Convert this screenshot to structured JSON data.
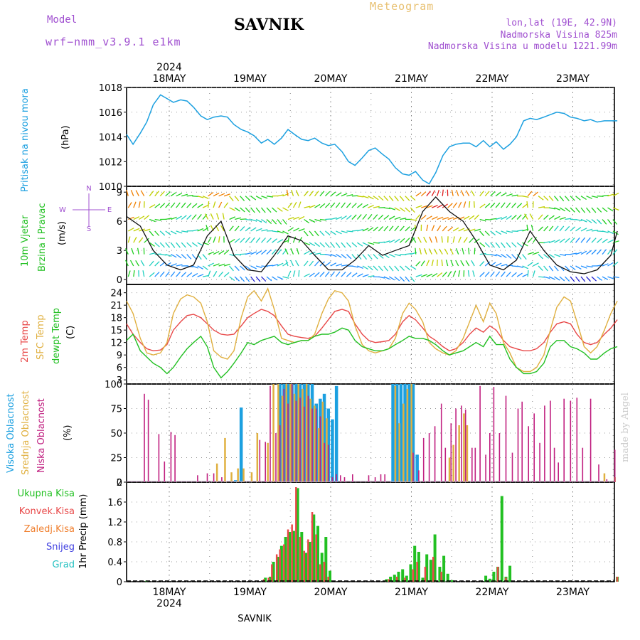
{
  "header": {
    "model_label": "Model",
    "model_name": "wrf−nmm_v3.9.1  e1km",
    "station": "SAVNIK",
    "meteogram": "Meteogram",
    "lonlat": "lon,lat (19E, 42.9N)",
    "elevation": "Nadmorska Visina 825m",
    "model_elevation": "Nadmorska Visina u modelu 1221.99m",
    "year_top": "2024",
    "year_bottom": "2024",
    "footer": "SAVNIK",
    "credit": "made by Angel"
  },
  "days": [
    "18MAY",
    "19MAY",
    "20MAY",
    "21MAY",
    "22MAY",
    "23MAY"
  ],
  "panel_labels": {
    "pressure": [
      "Pritisak na nivou mora",
      "(hPa)"
    ],
    "wind": [
      "10m Vjetar",
      "Brzina i Pravac",
      "(m/s)"
    ],
    "compass": [
      "N",
      "E",
      "W",
      "S"
    ],
    "temp": [
      "2m Temp",
      "SFC Temp",
      "dewpt Temp",
      "(C)"
    ],
    "cloud": [
      "Visoka Oblacnost",
      "Srednja Oblacnost",
      "Niska Oblacnost",
      "(%)"
    ],
    "precip": [
      "Ukupna Kisa",
      "Konvek.Kisa",
      "Zaledj.Kisa",
      "Snijeg",
      "Grad",
      "1hr Precip (mm)"
    ]
  },
  "colors": {
    "pressure": "#1ca0e0",
    "temp2m": "#e84848",
    "sfc": "#e0b040",
    "dewpt": "#22c022",
    "high_cloud": "#1ca0e0",
    "mid_cloud": "#e0b040",
    "low_cloud": "#c02080",
    "total_rain": "#22c022",
    "conv_rain": "#e84848",
    "frz_rain": "#f08030",
    "snow": "#4040e0",
    "hail": "#20c0c0",
    "header_text": "#a050d0"
  },
  "chart_data": [
    {
      "type": "line",
      "name": "pressure",
      "ylabel": "Pritisak na nivou mora (hPa)",
      "ylim": [
        1010,
        1018
      ],
      "yticks": [
        "1010",
        "1012",
        "1014",
        "1016",
        "1018"
      ],
      "x_days": [
        0,
        0.08,
        0.17,
        0.25,
        0.33,
        0.42,
        0.5,
        0.58,
        0.67,
        0.75,
        0.83,
        0.92,
        1.0,
        1.08,
        1.17,
        1.25,
        1.33,
        1.42,
        1.5,
        1.58,
        1.67,
        1.75,
        1.83,
        1.92,
        2.0,
        2.08,
        2.17,
        2.25,
        2.33,
        2.42,
        2.5,
        2.58,
        2.67,
        2.75,
        2.83,
        2.92,
        3.0,
        3.08,
        3.17,
        3.25,
        3.33,
        3.42,
        3.5,
        3.58,
        3.67,
        3.75,
        3.83,
        3.92,
        4.0,
        4.08,
        4.17,
        4.25,
        4.33,
        4.42,
        4.5,
        4.58,
        4.67,
        4.75,
        4.83,
        4.92,
        5.0,
        5.08,
        5.17,
        5.25,
        5.33,
        5.42,
        5.5,
        5.58,
        5.67,
        5.75,
        5.83,
        5.92,
        6.0,
        6.08
      ],
      "values": [
        1014.2,
        1013.4,
        1014.3,
        1015.2,
        1016.6,
        1017.4,
        1017.1,
        1016.8,
        1017.0,
        1016.9,
        1016.4,
        1015.7,
        1015.4,
        1015.6,
        1015.7,
        1015.6,
        1015.0,
        1014.6,
        1014.4,
        1014.1,
        1013.5,
        1013.8,
        1013.4,
        1013.9,
        1014.6,
        1014.2,
        1013.8,
        1013.7,
        1013.9,
        1013.5,
        1013.3,
        1013.4,
        1012.8,
        1012.0,
        1011.7,
        1012.3,
        1012.9,
        1013.1,
        1012.6,
        1012.2,
        1011.5,
        1011.0,
        1010.9,
        1011.2,
        1010.5,
        1010.2,
        1011.1,
        1012.5,
        1013.2,
        1013.4,
        1013.5,
        1013.5,
        1013.2,
        1013.7,
        1013.2,
        1013.6,
        1013.0,
        1013.4,
        1014.0,
        1015.3,
        1015.5,
        1015.4,
        1015.6,
        1015.8,
        1016.0,
        1015.9,
        1015.6,
        1015.5,
        1015.3,
        1015.4,
        1015.2,
        1015.3,
        1015.3,
        1015.3
      ]
    },
    {
      "type": "line",
      "name": "wind",
      "ylabel": "10m Vjetar Brzina i Pravac (m/s)",
      "ylim": [
        -0.5,
        9.6
      ],
      "yticks": [
        "0",
        "3",
        "6",
        "9"
      ],
      "x_days": [
        0,
        0.17,
        0.33,
        0.5,
        0.67,
        0.83,
        1.0,
        1.17,
        1.33,
        1.5,
        1.67,
        1.83,
        2.0,
        2.17,
        2.33,
        2.5,
        2.67,
        2.83,
        3.0,
        3.17,
        3.33,
        3.5,
        3.67,
        3.83,
        4.0,
        4.17,
        4.33,
        4.5,
        4.67,
        4.83,
        5.0,
        5.17,
        5.33,
        5.5,
        5.67,
        5.83,
        6.0,
        6.08
      ],
      "values": [
        6.5,
        5.5,
        3.0,
        1.5,
        1.0,
        1.5,
        4.5,
        6.0,
        2.5,
        1.0,
        0.8,
        2.5,
        4.5,
        4.0,
        2.5,
        1.0,
        1.0,
        2.0,
        3.5,
        2.5,
        3.0,
        3.5,
        7.0,
        8.5,
        7.0,
        6.0,
        4.0,
        1.5,
        1.0,
        2.0,
        5.0,
        3.0,
        1.5,
        0.8,
        0.6,
        1.0,
        2.5,
        5.0
      ],
      "colors_by_speed": [
        "#2020d0",
        "#2090ff",
        "#20d0c0",
        "#20d020",
        "#c0d000",
        "#f08000",
        "#e02020",
        "#c020c0"
      ]
    },
    {
      "type": "line",
      "name": "temperature",
      "ylabel": "(C)",
      "ylim": [
        2,
        26
      ],
      "yticks": [
        "3",
        "6",
        "9",
        "12",
        "15",
        "18",
        "21",
        "24"
      ],
      "x_days": [
        0,
        0.08,
        0.17,
        0.25,
        0.33,
        0.42,
        0.5,
        0.58,
        0.67,
        0.75,
        0.83,
        0.92,
        1.0,
        1.08,
        1.17,
        1.25,
        1.33,
        1.42,
        1.5,
        1.58,
        1.67,
        1.75,
        1.83,
        1.92,
        2.0,
        2.08,
        2.17,
        2.25,
        2.33,
        2.42,
        2.5,
        2.58,
        2.67,
        2.75,
        2.83,
        2.92,
        3.0,
        3.08,
        3.17,
        3.25,
        3.33,
        3.42,
        3.5,
        3.58,
        3.67,
        3.75,
        3.83,
        3.92,
        4.0,
        4.08,
        4.17,
        4.25,
        4.33,
        4.42,
        4.5,
        4.58,
        4.67,
        4.75,
        4.83,
        4.92,
        5.0,
        5.08,
        5.17,
        5.25,
        5.33,
        5.42,
        5.5,
        5.58,
        5.67,
        5.75,
        5.83,
        5.92,
        6.0,
        6.08
      ],
      "series": [
        {
          "name": "2m Temp",
          "values": [
            16.5,
            14.0,
            12.0,
            10.5,
            10.0,
            10.2,
            11.5,
            15.0,
            17.0,
            18.5,
            18.8,
            18.0,
            16.5,
            15.0,
            14.0,
            13.8,
            14.0,
            16.0,
            18.0,
            19.0,
            20.0,
            19.5,
            18.5,
            16.0,
            14.0,
            13.5,
            13.2,
            13.0,
            13.5,
            15.5,
            17.5,
            19.5,
            20.0,
            19.5,
            16.5,
            14.0,
            12.5,
            12.0,
            12.2,
            12.5,
            14.0,
            17.0,
            18.5,
            17.5,
            15.5,
            13.5,
            12.5,
            11.0,
            10.0,
            10.5,
            12.0,
            14.0,
            15.5,
            14.5,
            16.0,
            15.0,
            12.5,
            11.0,
            10.5,
            10.0,
            10.0,
            10.5,
            12.0,
            14.5,
            16.5,
            17.0,
            16.5,
            14.0,
            12.0,
            11.5,
            12.0,
            14.0,
            15.5,
            17.5
          ]
        },
        {
          "name": "SFC Temp",
          "values": [
            22.0,
            19.0,
            13.0,
            9.5,
            9.0,
            9.5,
            12.0,
            19.0,
            22.5,
            23.5,
            23.0,
            21.5,
            17.0,
            10.0,
            8.5,
            8.0,
            10.0,
            18.0,
            23.0,
            24.5,
            22.0,
            25.0,
            20.0,
            13.0,
            12.5,
            12.0,
            12.5,
            12.5,
            14.0,
            19.0,
            22.5,
            24.5,
            24.0,
            22.0,
            16.0,
            11.5,
            10.0,
            9.5,
            10.0,
            10.5,
            13.0,
            19.0,
            21.5,
            20.0,
            17.0,
            12.0,
            10.5,
            9.5,
            9.0,
            10.0,
            13.0,
            17.0,
            21.0,
            17.0,
            21.5,
            19.0,
            12.0,
            9.5,
            6.0,
            5.0,
            5.0,
            6.0,
            9.0,
            15.0,
            20.5,
            23.0,
            22.0,
            17.0,
            11.0,
            9.5,
            11.0,
            15.0,
            19.0,
            22.0
          ]
        },
        {
          "name": "dewpt Temp",
          "values": [
            12.5,
            14.0,
            10.0,
            8.5,
            7.0,
            6.0,
            4.5,
            6.0,
            8.5,
            10.5,
            12.0,
            13.5,
            11.0,
            6.0,
            3.5,
            5.0,
            7.0,
            9.5,
            12.0,
            11.5,
            12.5,
            13.0,
            13.5,
            12.0,
            11.5,
            12.0,
            12.5,
            12.5,
            13.5,
            14.0,
            14.0,
            14.5,
            15.5,
            15.0,
            12.5,
            11.0,
            10.5,
            10.0,
            10.0,
            10.5,
            11.5,
            12.5,
            13.5,
            13.0,
            13.0,
            12.5,
            11.5,
            10.0,
            9.0,
            9.5,
            10.0,
            11.0,
            12.0,
            11.0,
            13.5,
            11.5,
            11.5,
            8.0,
            6.0,
            4.5,
            4.5,
            5.0,
            7.0,
            11.0,
            12.5,
            12.5,
            11.0,
            10.5,
            9.5,
            8.0,
            8.0,
            9.5,
            10.5,
            11.0
          ]
        }
      ]
    },
    {
      "type": "bar",
      "name": "cloud",
      "ylabel": "(%)",
      "ylim": [
        0,
        100
      ],
      "yticks": [
        "0",
        "25",
        "50",
        "75",
        "100"
      ],
      "series": [
        {
          "name": "Visoka Oblacnost",
          "x_days": [
            1.35,
            1.42,
            1.9,
            1.95,
            2.0,
            2.05,
            2.1,
            2.15,
            2.2,
            2.25,
            2.3,
            2.35,
            2.4,
            2.45,
            2.5,
            2.55,
            2.6,
            3.3,
            3.35,
            3.4,
            3.45,
            3.5,
            3.55,
            3.6
          ],
          "values": [
            2,
            76,
            100,
            100,
            100,
            100,
            100,
            100,
            100,
            100,
            100,
            80,
            85,
            90,
            75,
            64,
            98,
            100,
            100,
            100,
            100,
            100,
            100,
            28
          ]
        },
        {
          "name": "Srednja Oblacnost",
          "x_days": [
            1.12,
            1.22,
            1.3,
            1.38,
            1.45,
            1.55,
            1.62,
            1.75,
            1.82,
            1.88,
            1.93,
            1.98,
            2.03,
            2.08,
            2.13,
            2.18,
            2.23,
            2.28,
            2.33,
            2.38,
            2.43,
            2.48,
            3.33,
            3.38,
            3.43,
            3.48,
            3.53,
            4.0,
            4.05,
            4.12,
            4.18,
            4.22,
            5.92,
            6.05
          ],
          "values": [
            19,
            45,
            10,
            14,
            14,
            10,
            50,
            40,
            100,
            100,
            88,
            100,
            100,
            90,
            100,
            95,
            100,
            85,
            78,
            55,
            82,
            65,
            98,
            60,
            80,
            95,
            100,
            25,
            38,
            58,
            70,
            58,
            9,
            5
          ]
        },
        {
          "name": "Niska Oblacnost",
          "x_days": [
            0.22,
            0.27,
            0.4,
            0.47,
            0.55,
            0.6,
            0.88,
            1.0,
            1.08,
            1.18,
            1.65,
            1.72,
            1.78,
            1.85,
            1.9,
            1.95,
            2.0,
            2.05,
            2.1,
            2.15,
            2.2,
            2.25,
            2.3,
            2.35,
            2.4,
            2.45,
            2.5,
            2.55,
            2.6,
            2.65,
            2.7,
            2.8,
            3.0,
            3.08,
            3.15,
            3.2,
            3.55,
            3.62,
            3.68,
            3.75,
            3.82,
            3.9,
            3.95,
            4.02,
            4.08,
            4.15,
            4.2,
            4.28,
            4.32,
            4.38,
            4.45,
            4.5,
            4.55,
            4.62,
            4.7,
            4.78,
            4.85,
            4.9,
            4.98,
            5.05,
            5.12,
            5.18,
            5.25,
            5.3,
            5.35,
            5.42,
            5.5,
            5.58,
            5.65,
            5.75,
            5.85,
            5.95,
            6.05
          ],
          "values": [
            90,
            84,
            49,
            21,
            51,
            48,
            7,
            9,
            9,
            5,
            43,
            41,
            98,
            50,
            58,
            95,
            80,
            100,
            83,
            86,
            77,
            88,
            75,
            75,
            67,
            40,
            38,
            5,
            8,
            7,
            5,
            8,
            7,
            5,
            8,
            8,
            30,
            12,
            45,
            50,
            57,
            80,
            35,
            60,
            75,
            78,
            74,
            35,
            35,
            98,
            28,
            50,
            97,
            50,
            88,
            30,
            75,
            82,
            57,
            70,
            40,
            78,
            83,
            35,
            20,
            85,
            83,
            86,
            35,
            85,
            18,
            3,
            33
          ]
        }
      ]
    },
    {
      "type": "bar",
      "name": "precip",
      "ylabel": "1hr Precip (mm)",
      "ylim": [
        0,
        2
      ],
      "yticks": [
        "0",
        "0.4",
        "0.8",
        "1.2",
        "1.6",
        "2"
      ],
      "series": [
        {
          "name": "Ukupna Kisa",
          "x_days": [
            0.25,
            1.72,
            1.78,
            1.82,
            1.88,
            1.92,
            1.97,
            2.02,
            2.07,
            2.12,
            2.17,
            2.22,
            2.27,
            2.32,
            2.37,
            2.42,
            2.47,
            2.52,
            3.22,
            3.27,
            3.32,
            3.37,
            3.42,
            3.47,
            3.52,
            3.57,
            3.62,
            3.67,
            3.72,
            3.77,
            3.82,
            3.88,
            3.93,
            3.98,
            4.03,
            4.45,
            4.5,
            4.55,
            4.6,
            4.65,
            4.7,
            4.75,
            6.08
          ],
          "values": [
            0.02,
            0.08,
            0.1,
            0.4,
            0.5,
            0.72,
            0.9,
            1.0,
            1.02,
            1.88,
            1.0,
            0.58,
            0.8,
            1.35,
            1.12,
            0.58,
            0.9,
            0.22,
            0.05,
            0.1,
            0.14,
            0.2,
            0.25,
            0.12,
            0.35,
            0.72,
            0.6,
            0.08,
            0.55,
            0.44,
            0.95,
            0.3,
            0.52,
            0.16,
            0.03,
            0.12,
            0.06,
            0.2,
            0.3,
            1.72,
            0.1,
            0.32,
            0.1
          ]
        },
        {
          "name": "Konvek.Kisa",
          "x_days": [
            1.7,
            1.76,
            1.8,
            1.86,
            1.9,
            1.95,
            2.0,
            2.05,
            2.1,
            2.15,
            2.2,
            2.25,
            2.3,
            2.35,
            2.4,
            2.45,
            2.5,
            3.25,
            3.35,
            3.45,
            3.55,
            3.6,
            3.7,
            3.8,
            3.9,
            4.6,
            4.7,
            6.08
          ],
          "values": [
            0.05,
            0.08,
            0.35,
            0.55,
            0.65,
            0.75,
            1.05,
            1.15,
            1.9,
            0.9,
            0.62,
            0.85,
            1.4,
            0.95,
            0.35,
            0.4,
            0.1,
            0.05,
            0.1,
            0.08,
            0.25,
            0.4,
            0.3,
            0.5,
            0.2,
            0.3,
            0.08,
            0.1
          ]
        }
      ]
    }
  ]
}
